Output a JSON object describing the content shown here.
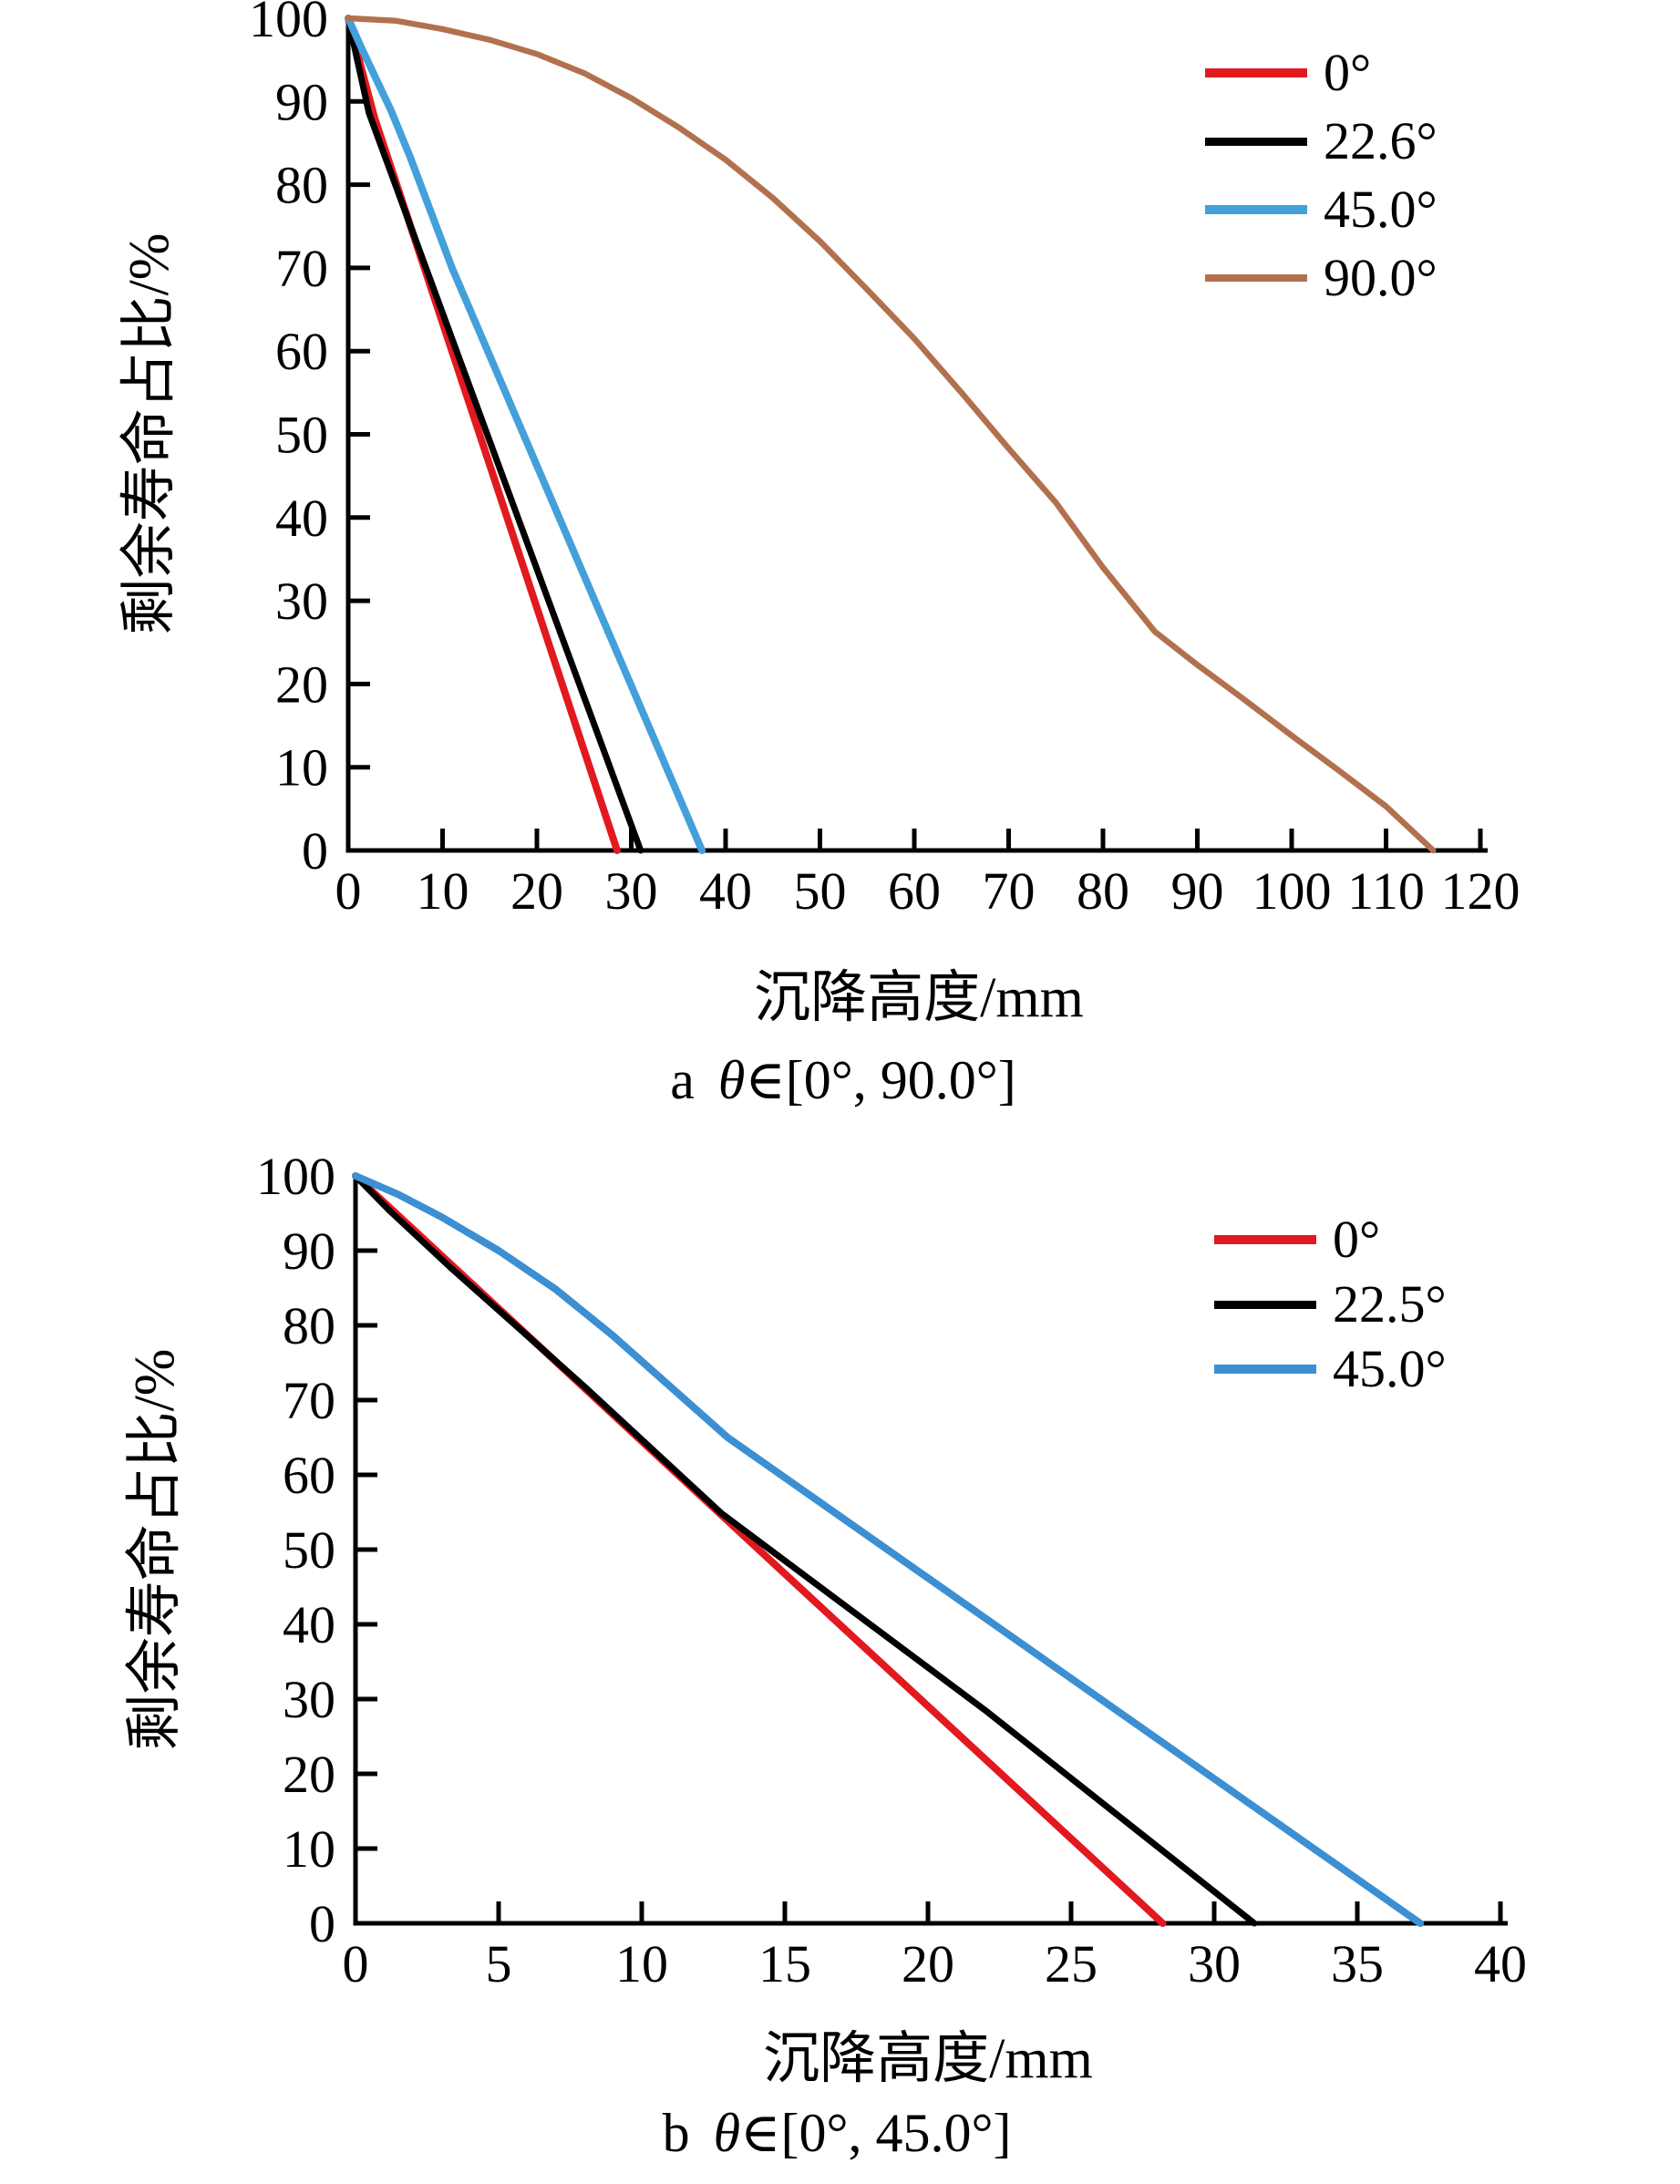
{
  "figure": {
    "background": "#ffffff",
    "axis_color": "#000000"
  },
  "chart_data": [
    {
      "type": "line",
      "panel": "top",
      "xlabel": "沉降高度/mm",
      "ylabel": "剩余寿命占比/%",
      "caption": {
        "index": "a",
        "theta": "θ",
        "range": "∈[0°, 90.0°]"
      },
      "xlim": [
        0,
        120
      ],
      "ylim": [
        0,
        100
      ],
      "x_ticks": [
        0,
        10,
        20,
        30,
        40,
        50,
        60,
        70,
        80,
        90,
        100,
        110,
        120
      ],
      "y_ticks": [
        0,
        10,
        20,
        30,
        40,
        50,
        60,
        70,
        80,
        90,
        100
      ],
      "grid": false,
      "legend_position": "upper right",
      "series": [
        {
          "name": "0°",
          "color": "#e2191f",
          "width": 8,
          "points": [
            [
              0,
              100
            ],
            [
              1.2,
              94.8
            ],
            [
              2.8,
              88
            ],
            [
              15,
              46.3
            ],
            [
              28.5,
              0
            ]
          ]
        },
        {
          "name": "22.6°",
          "color": "#000000",
          "width": 7,
          "points": [
            [
              0,
              100
            ],
            [
              0.9,
              95.3
            ],
            [
              2.2,
              88.6
            ],
            [
              16,
              46.1
            ],
            [
              31,
              0
            ]
          ]
        },
        {
          "name": "45.0°",
          "color": "#43a0da",
          "width": 8,
          "points": [
            [
              0,
              100
            ],
            [
              1.5,
              96.2
            ],
            [
              3,
              92.6
            ],
            [
              4.5,
              89
            ],
            [
              6.5,
              83.5
            ],
            [
              8.5,
              77.5
            ],
            [
              11,
              70
            ],
            [
              37.5,
              0
            ]
          ]
        },
        {
          "name": "90.0°",
          "color": "#b2714e",
          "width": 6.5,
          "points": [
            [
              0,
              100
            ],
            [
              5,
              99.7
            ],
            [
              10,
              98.7
            ],
            [
              15,
              97.4
            ],
            [
              20,
              95.7
            ],
            [
              25,
              93.4
            ],
            [
              30,
              90.4
            ],
            [
              35,
              86.9
            ],
            [
              40,
              83
            ],
            [
              45,
              78.4
            ],
            [
              50,
              73.2
            ],
            [
              55,
              67.4
            ],
            [
              60,
              61.5
            ],
            [
              65,
              55
            ],
            [
              70,
              48.3
            ],
            [
              75,
              41.8
            ],
            [
              80,
              34
            ],
            [
              85.5,
              26.3
            ],
            [
              90,
              22.3
            ],
            [
              95,
              18.1
            ],
            [
              100,
              13.8
            ],
            [
              105,
              9.6
            ],
            [
              110,
              5.3
            ],
            [
              115,
              0
            ]
          ]
        }
      ]
    },
    {
      "type": "line",
      "panel": "bottom",
      "xlabel": "沉降高度/mm",
      "ylabel": "剩余寿命占比/%",
      "caption": {
        "index": "b",
        "theta": "θ",
        "range": "∈[0°, 45.0°]"
      },
      "xlim": [
        0,
        40
      ],
      "ylim": [
        0,
        100
      ],
      "x_ticks": [
        0,
        5,
        10,
        15,
        20,
        25,
        30,
        35,
        40
      ],
      "y_ticks": [
        0,
        10,
        20,
        30,
        40,
        50,
        60,
        70,
        80,
        90,
        100
      ],
      "grid": false,
      "legend_position": "upper right",
      "series": [
        {
          "name": "0°",
          "color": "#e2191f",
          "width": 8,
          "points": [
            [
              0,
              100
            ],
            [
              14,
              50.3
            ],
            [
              28.2,
              0
            ]
          ]
        },
        {
          "name": "22.5°",
          "color": "#000000",
          "width": 7,
          "points": [
            [
              0,
              100
            ],
            [
              1.2,
              95.3
            ],
            [
              3.3,
              87.8
            ],
            [
              8,
              71.8
            ],
            [
              12.8,
              54.8
            ],
            [
              22,
              28.5
            ],
            [
              31.4,
              0
            ]
          ]
        },
        {
          "name": "45.0°",
          "color": "#3b8fd2",
          "width": 8,
          "points": [
            [
              0,
              100
            ],
            [
              1.5,
              97.5
            ],
            [
              3,
              94.5
            ],
            [
              5,
              90
            ],
            [
              7,
              84.8
            ],
            [
              9,
              78.6
            ],
            [
              11,
              71.8
            ],
            [
              13,
              65
            ],
            [
              37.2,
              0
            ]
          ]
        }
      ]
    }
  ]
}
